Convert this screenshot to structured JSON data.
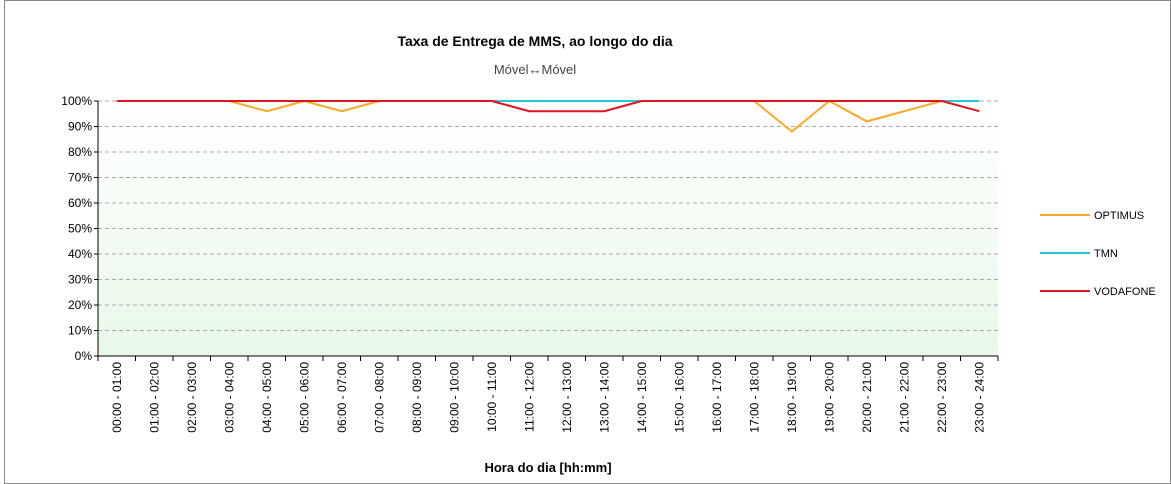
{
  "chart_data": {
    "type": "line",
    "title": "Taxa de Entrega de MMS, ao longo do dia",
    "subtitle": "Móvel↔Móvel",
    "x_label": "Hora do dia [hh:mm]",
    "categories": [
      "00:00 - 01:00",
      "01:00 - 02:00",
      "02:00 - 03:00",
      "03:00 - 04:00",
      "04:00 - 05:00",
      "05:00 - 06:00",
      "06:00 - 07:00",
      "07:00 - 08:00",
      "08:00 - 09:00",
      "09:00 - 10:00",
      "10:00 - 11:00",
      "11:00 - 12:00",
      "12:00 - 13:00",
      "13:00 - 14:00",
      "14:00 - 15:00",
      "15:00 - 16:00",
      "16:00 - 17:00",
      "17:00 - 18:00",
      "18:00 - 19:00",
      "19:00 - 20:00",
      "20:00 - 21:00",
      "21:00 - 22:00",
      "22:00 - 23:00",
      "23:00 - 24:00"
    ],
    "series": [
      {
        "name": "OPTIMUS",
        "color": "#ffa726",
        "values": [
          100,
          100,
          100,
          100,
          96,
          100,
          96,
          100,
          100,
          100,
          100,
          100,
          100,
          100,
          100,
          100,
          100,
          100,
          88,
          100,
          92,
          96,
          100,
          100
        ]
      },
      {
        "name": "TMN",
        "color": "#26c6da",
        "values": [
          100,
          100,
          100,
          100,
          100,
          100,
          100,
          100,
          100,
          100,
          100,
          100,
          100,
          100,
          100,
          100,
          100,
          100,
          100,
          100,
          100,
          100,
          100,
          100
        ]
      },
      {
        "name": "VODAFONE",
        "color": "#e0141e",
        "values": [
          100,
          100,
          100,
          100,
          100,
          100,
          100,
          100,
          100,
          100,
          100,
          96,
          96,
          96,
          100,
          100,
          100,
          100,
          100,
          100,
          100,
          100,
          100,
          96
        ]
      }
    ],
    "ylim": [
      0,
      100
    ],
    "yticks": [
      {
        "value": 0,
        "label": "0%"
      },
      {
        "value": 10,
        "label": "10%"
      },
      {
        "value": 20,
        "label": "20%"
      },
      {
        "value": 30,
        "label": "30%"
      },
      {
        "value": 40,
        "label": "40%"
      },
      {
        "value": 50,
        "label": "50%"
      },
      {
        "value": 60,
        "label": "60%"
      },
      {
        "value": 70,
        "label": "70%"
      },
      {
        "value": 80,
        "label": "80%"
      },
      {
        "value": 90,
        "label": "90%"
      },
      {
        "value": 100,
        "label": "100%"
      }
    ],
    "grid": true,
    "legend": "right"
  }
}
